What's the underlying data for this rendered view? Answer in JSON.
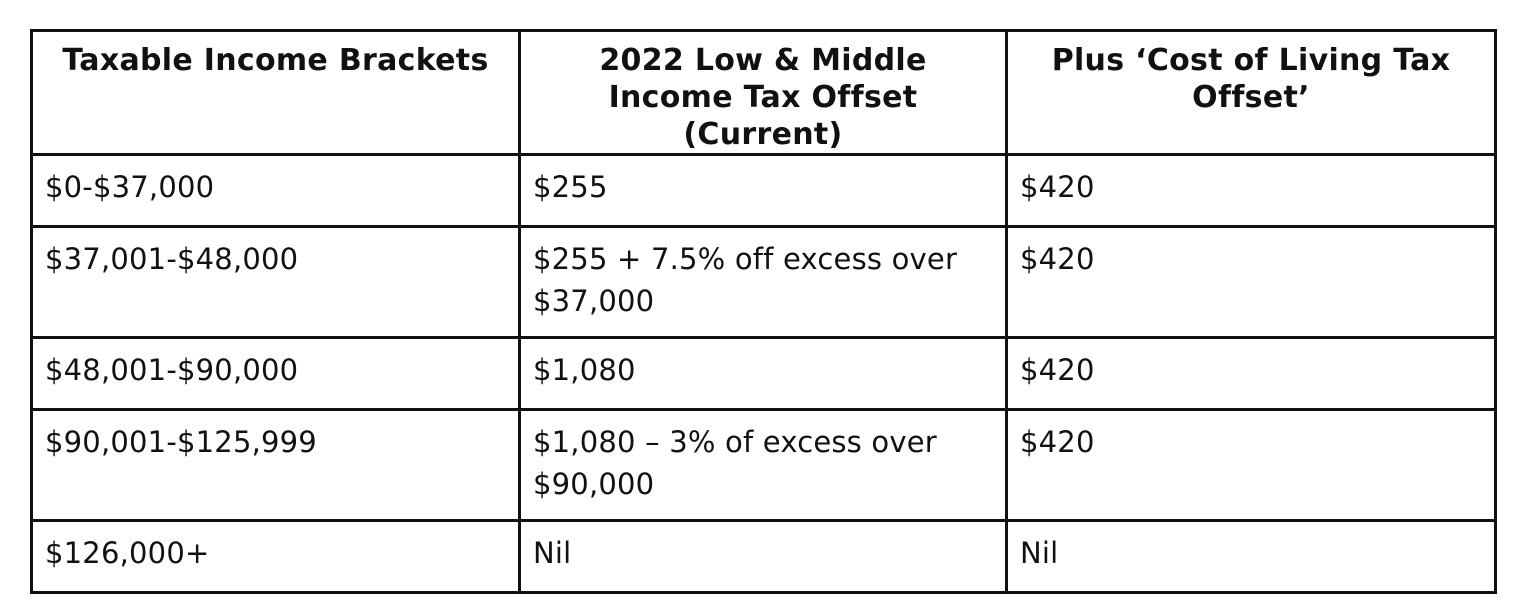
{
  "table": {
    "headers": [
      "Taxable Income Brackets",
      "2022 Low & Middle Income Tax Offset (Current)",
      "Plus ‘Cost of Living Tax Offset’"
    ],
    "rows": [
      [
        "$0-$37,000",
        "$255",
        "$420"
      ],
      [
        "$37,001-$48,000",
        "$255 + 7.5% off excess over $37,000",
        "$420"
      ],
      [
        "$48,001-$90,000",
        "$1,080",
        "$420"
      ],
      [
        "$90,001-$125,999",
        "$1,080 – 3% of excess over $90,000",
        "$420"
      ],
      [
        "$126,000+",
        "Nil",
        "Nil"
      ]
    ]
  }
}
